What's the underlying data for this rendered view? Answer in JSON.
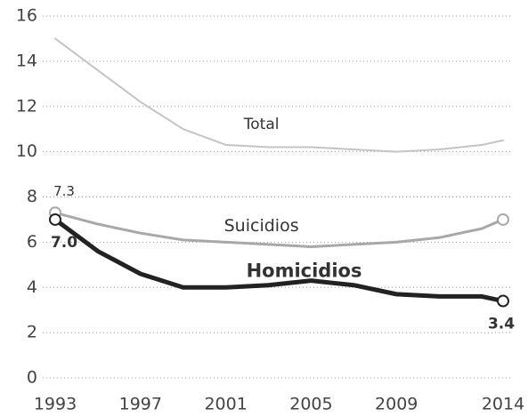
{
  "chart_data": {
    "type": "line",
    "x": [
      1993,
      1995,
      1997,
      1999,
      2001,
      2003,
      2005,
      2007,
      2009,
      2011,
      2013,
      2014
    ],
    "xlim": [
      1993,
      2014
    ],
    "xticks": [
      1993,
      1997,
      2001,
      2005,
      2009,
      2014
    ],
    "ylim": [
      0,
      16
    ],
    "yticks": [
      0,
      2,
      4,
      6,
      8,
      10,
      12,
      14,
      16
    ],
    "grid": true,
    "series": [
      {
        "name": "Total",
        "color": "#c4c4c4",
        "width": 2,
        "values": [
          15.0,
          13.6,
          12.2,
          11.0,
          10.3,
          10.2,
          10.2,
          10.1,
          10.0,
          10.1,
          10.3,
          10.5
        ]
      },
      {
        "name": "Suicidios",
        "color": "#a8a8a8",
        "width": 3,
        "values": [
          7.3,
          6.8,
          6.4,
          6.1,
          6.0,
          5.9,
          5.8,
          5.9,
          6.0,
          6.2,
          6.6,
          7.0
        ],
        "value_labels": [
          "7.3",
          null,
          null,
          null,
          null,
          null,
          null,
          null,
          null,
          null,
          null,
          null
        ]
      },
      {
        "name": "Homicidios",
        "color": "#222222",
        "width": 5,
        "values": [
          7.0,
          5.6,
          4.6,
          4.0,
          4.0,
          4.1,
          4.3,
          4.1,
          3.7,
          3.6,
          3.6,
          3.4
        ],
        "value_labels": [
          "7.0",
          null,
          null,
          null,
          null,
          null,
          null,
          null,
          null,
          null,
          null,
          "3.4"
        ]
      }
    ]
  }
}
